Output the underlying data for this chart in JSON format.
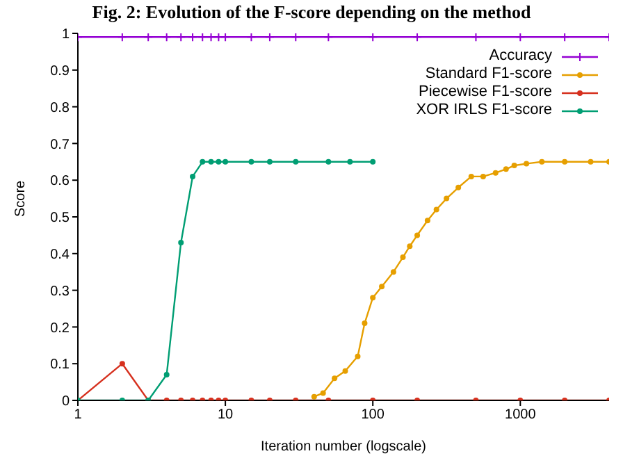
{
  "chart_data": {
    "type": "line",
    "title": "Fig. 2: Evolution of the F-score depending on the method",
    "xlabel": "Iteration number (logscale)",
    "ylabel": "Score",
    "log": "x",
    "xlim": [
      1,
      4000
    ],
    "xticks": [
      1,
      10,
      100,
      1000
    ],
    "ylim": [
      0,
      1
    ],
    "yticks": [
      0,
      0.1,
      0.2,
      0.3,
      0.4,
      0.5,
      0.6,
      0.7,
      0.8,
      0.9,
      1
    ],
    "grid": false,
    "legend": "top right",
    "series": [
      {
        "name": "Accuracy",
        "color": "#9400d3",
        "marker": "cross",
        "x": [
          1,
          2,
          3,
          4,
          5,
          6,
          7,
          8,
          9,
          10,
          15,
          20,
          30,
          50,
          100,
          200,
          500,
          1000,
          2000,
          4000
        ],
        "values": [
          0.99,
          0.99,
          0.99,
          0.99,
          0.99,
          0.99,
          0.99,
          0.99,
          0.99,
          0.99,
          0.99,
          0.99,
          0.99,
          0.99,
          0.99,
          0.99,
          0.99,
          0.99,
          0.99,
          0.99
        ]
      },
      {
        "name": "Standard F1-score",
        "color": "#e69f00",
        "marker": "circle",
        "x": [
          40,
          46,
          55,
          65,
          79,
          88,
          100,
          115,
          138,
          160,
          178,
          200,
          235,
          270,
          316,
          380,
          465,
          560,
          680,
          800,
          910,
          1100,
          1400,
          2000,
          3000,
          4000
        ],
        "values": [
          0.01,
          0.02,
          0.06,
          0.08,
          0.12,
          0.21,
          0.28,
          0.31,
          0.35,
          0.39,
          0.42,
          0.45,
          0.49,
          0.52,
          0.55,
          0.58,
          0.61,
          0.61,
          0.62,
          0.63,
          0.64,
          0.645,
          0.65,
          0.65,
          0.65,
          0.65
        ]
      },
      {
        "name": "Piecewise F1-score",
        "color": "#d6301e",
        "marker": "circle",
        "x": [
          1,
          2,
          3,
          4,
          5,
          6,
          7,
          8,
          9,
          10,
          15,
          20,
          30,
          50,
          100,
          200,
          500,
          1000,
          2000,
          4000
        ],
        "values": [
          0,
          0.1,
          0,
          0,
          0,
          0,
          0,
          0,
          0,
          0,
          0,
          0,
          0,
          0,
          0,
          0,
          0,
          0,
          0,
          0
        ]
      },
      {
        "name": "XOR IRLS F1-score",
        "color": "#009e73",
        "marker": "circle",
        "x": [
          1,
          2,
          3,
          4,
          5,
          6,
          7,
          8,
          9,
          10,
          15,
          20,
          30,
          50,
          70,
          100
        ],
        "values": [
          0,
          0,
          0,
          0.07,
          0.43,
          0.61,
          0.65,
          0.65,
          0.65,
          0.65,
          0.65,
          0.65,
          0.65,
          0.65,
          0.65,
          0.65
        ]
      }
    ]
  }
}
